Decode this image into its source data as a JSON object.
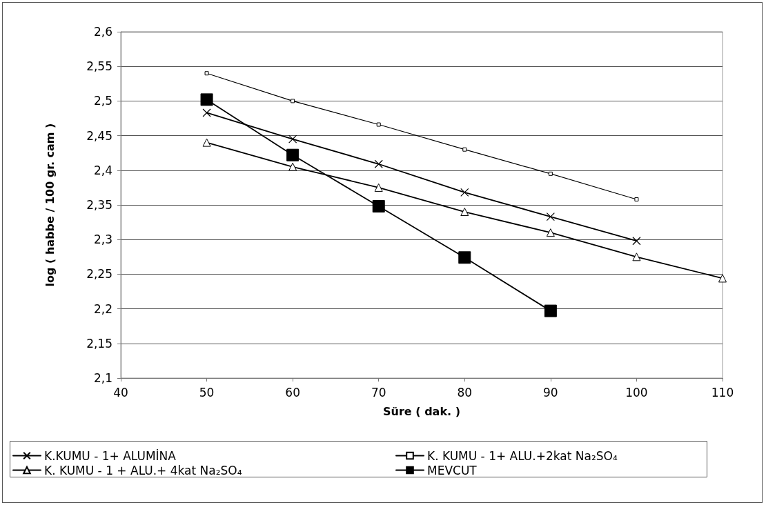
{
  "chart_data": {
    "type": "line",
    "xlabel": "Süre ( dak. )",
    "ylabel": "log ( habbe / 100 gr. cam )",
    "x": [
      50,
      60,
      70,
      80,
      90,
      100
    ],
    "series": [
      {
        "name": "K.KUMU - 1+ ALUMİNA",
        "color": "#000000",
        "marker": "cross",
        "values": [
          2.483,
          2.445,
          2.409,
          2.368,
          2.333,
          2.298
        ]
      },
      {
        "name": "K. KUMU - 1+ ALU.+2kat Na₂SO₄",
        "color": "#000000",
        "marker": "square",
        "values": [
          2.54,
          2.5,
          2.466,
          2.43,
          2.395,
          2.358
        ]
      },
      {
        "name": "K. KUMU - 1 + ALU.+ 4kat Na₂SO₄",
        "color": "#000000",
        "marker": "triangle",
        "x": [
          50,
          60,
          70,
          80,
          90,
          100,
          110
        ],
        "values": [
          2.44,
          2.405,
          2.375,
          2.34,
          2.31,
          2.275,
          2.244
        ]
      },
      {
        "name": "MEVCUT",
        "color": "#000000",
        "marker": "square",
        "x": [
          50,
          60,
          70,
          80,
          90
        ],
        "values": [
          2.502,
          2.422,
          2.348,
          2.274,
          2.197
        ]
      }
    ],
    "xlim": [
      40,
      110
    ],
    "xticks": [
      40,
      50,
      60,
      70,
      80,
      90,
      100,
      110
    ],
    "ylim": [
      2.1,
      2.6
    ],
    "yticks": [
      {
        "value": 2.1,
        "label": "2,1"
      },
      {
        "value": 2.15,
        "label": "2,15"
      },
      {
        "value": 2.2,
        "label": "2,2"
      },
      {
        "value": 2.25,
        "label": "2,25"
      },
      {
        "value": 2.3,
        "label": "2,3"
      },
      {
        "value": 2.35,
        "label": "2,35"
      },
      {
        "value": 2.4,
        "label": "2,4"
      },
      {
        "value": 2.45,
        "label": "2,45"
      },
      {
        "value": 2.5,
        "label": "2,5"
      },
      {
        "value": 2.55,
        "label": "2,55"
      },
      {
        "value": 2.6,
        "label": "2,6"
      }
    ],
    "grid": "y",
    "legend": "bottom",
    "line_style": "solid"
  }
}
